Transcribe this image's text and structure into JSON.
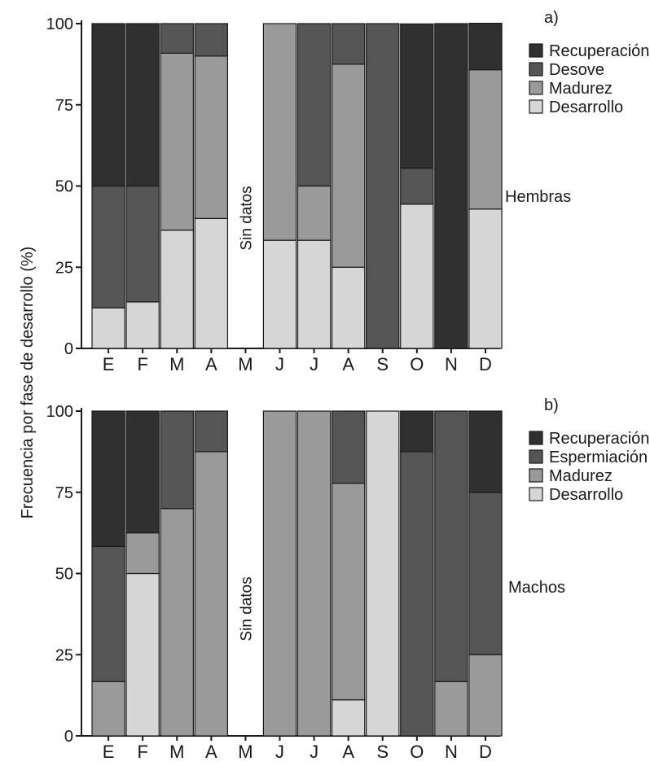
{
  "figure": {
    "ylabel": "Frecuencia por fase de desarrollo (%)"
  },
  "chart_data": [
    {
      "type": "bar",
      "stacked": true,
      "panel_label": "a)",
      "side_label": "Hembras",
      "no_data_label": "Sin datos",
      "categories": [
        "E",
        "F",
        "M",
        "A",
        "M",
        "J",
        "J",
        "A",
        "S",
        "O",
        "N",
        "D"
      ],
      "ylim": [
        0,
        100
      ],
      "yticks": [
        0,
        25,
        50,
        75,
        100
      ],
      "series": [
        {
          "name": "Desarrollo",
          "color": "#d6d6d6",
          "values": [
            12.5,
            14.3,
            36.4,
            40,
            null,
            33.3,
            33.3,
            25,
            0,
            44.4,
            0,
            42.9
          ]
        },
        {
          "name": "Madurez",
          "color": "#9a9a9a",
          "values": [
            0,
            0,
            54.5,
            50,
            null,
            66.7,
            16.7,
            62.5,
            0,
            0,
            0,
            42.9
          ]
        },
        {
          "name": "Desove",
          "color": "#555555",
          "values": [
            37.5,
            35.7,
            9.1,
            10,
            null,
            0,
            50,
            12.5,
            100,
            11.1,
            0,
            0
          ]
        },
        {
          "name": "Recuperación",
          "color": "#303030",
          "values": [
            50,
            50,
            0,
            0,
            null,
            0,
            0,
            0,
            0,
            44.4,
            100,
            14.3
          ]
        }
      ],
      "legend": [
        "Recuperación",
        "Desove",
        "Madurez",
        "Desarrollo"
      ]
    },
    {
      "type": "bar",
      "stacked": true,
      "panel_label": "b)",
      "side_label": "Machos",
      "no_data_label": "Sin datos",
      "categories": [
        "E",
        "F",
        "M",
        "A",
        "M",
        "J",
        "J",
        "A",
        "S",
        "O",
        "N",
        "D"
      ],
      "ylim": [
        0,
        100
      ],
      "yticks": [
        0,
        25,
        50,
        75,
        100
      ],
      "series": [
        {
          "name": "Desarrollo",
          "color": "#d6d6d6",
          "values": [
            0,
            50,
            0,
            0,
            null,
            0,
            0,
            11.1,
            100,
            0,
            0,
            0
          ]
        },
        {
          "name": "Madurez",
          "color": "#9a9a9a",
          "values": [
            16.7,
            12.5,
            70,
            87.5,
            null,
            100,
            100,
            66.7,
            0,
            0,
            16.7,
            25
          ]
        },
        {
          "name": "Espermiación",
          "color": "#555555",
          "values": [
            41.6,
            0,
            30,
            12.5,
            null,
            0,
            0,
            22.2,
            0,
            87.5,
            83.3,
            50
          ]
        },
        {
          "name": "Recuperación",
          "color": "#303030",
          "values": [
            41.7,
            37.5,
            0,
            0,
            null,
            0,
            0,
            0,
            0,
            12.5,
            0,
            25
          ]
        }
      ],
      "legend": [
        "Recuperación",
        "Espermiación",
        "Madurez",
        "Desarrollo"
      ]
    }
  ]
}
